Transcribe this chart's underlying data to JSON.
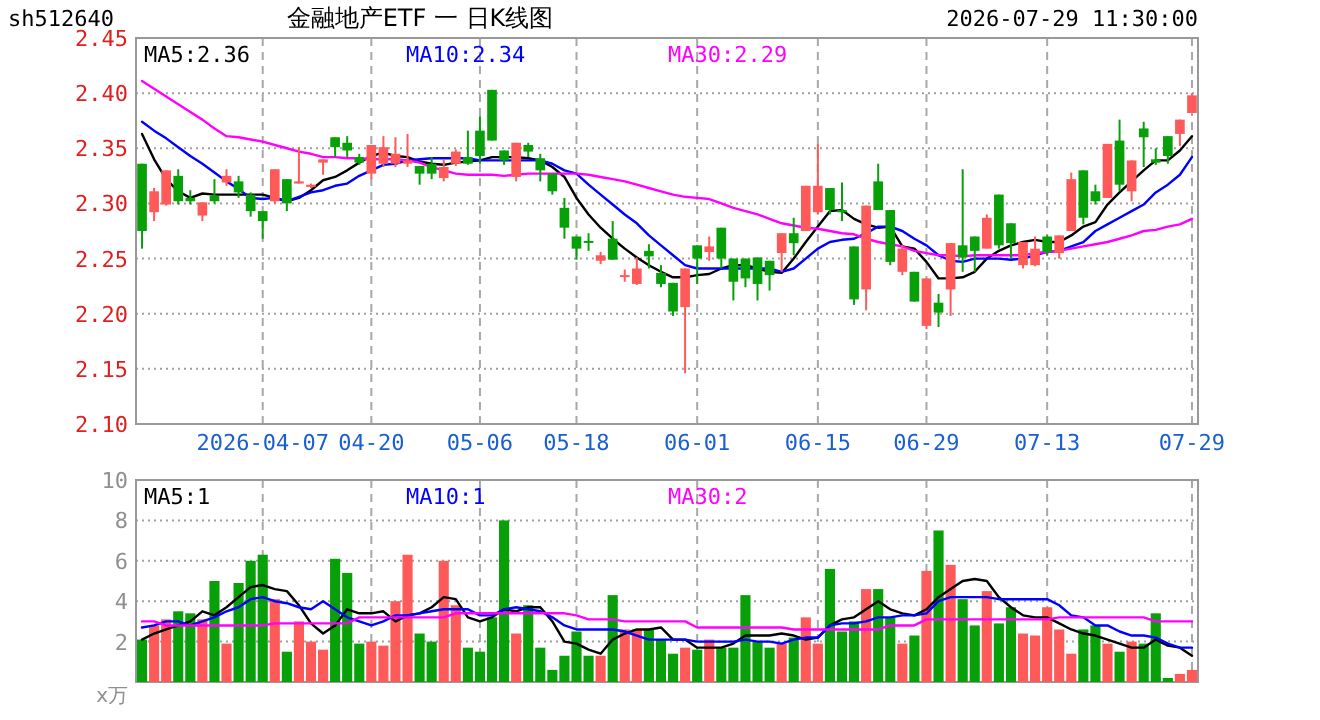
{
  "chart_data": [
    {
      "type": "candlestick",
      "title": "金融地产ETF 一 日K线图",
      "annotations": [
        "sh512640",
        "2026-07-29 11:30:00"
      ],
      "categories": [
        null,
        null,
        null,
        null,
        null,
        null,
        null,
        null,
        null,
        null,
        "2026-04-07",
        null,
        null,
        null,
        null,
        null,
        null,
        null,
        null,
        "04-20",
        null,
        null,
        null,
        null,
        null,
        null,
        null,
        null,
        "05-06",
        null,
        null,
        null,
        null,
        null,
        null,
        null,
        "05-18",
        null,
        null,
        null,
        null,
        null,
        null,
        null,
        null,
        null,
        "06-01",
        null,
        null,
        null,
        null,
        null,
        null,
        null,
        null,
        null,
        "06-15",
        null,
        null,
        null,
        null,
        null,
        null,
        null,
        null,
        "06-29",
        null,
        null,
        null,
        null,
        null,
        null,
        null,
        null,
        null,
        "07-13",
        null,
        null,
        null,
        null,
        null,
        null,
        null,
        null,
        null,
        null,
        null,
        "07-29"
      ],
      "ohlc": [
        [
          2.336,
          2.336,
          2.259,
          2.275
        ],
        [
          2.292,
          2.314,
          2.284,
          2.311
        ],
        [
          2.299,
          2.33,
          2.298,
          2.33
        ],
        [
          2.325,
          2.331,
          2.299,
          2.302
        ],
        [
          2.305,
          2.312,
          2.299,
          2.302
        ],
        [
          2.289,
          2.301,
          2.284,
          2.301
        ],
        [
          2.307,
          2.322,
          2.3,
          2.302
        ],
        [
          2.319,
          2.331,
          2.316,
          2.325
        ],
        [
          2.32,
          2.325,
          2.305,
          2.31
        ],
        [
          2.308,
          2.31,
          2.288,
          2.293
        ],
        [
          2.293,
          2.293,
          2.268,
          2.284
        ],
        [
          2.302,
          2.331,
          2.3,
          2.331
        ],
        [
          2.322,
          2.322,
          2.293,
          2.3
        ],
        [
          2.318,
          2.351,
          2.318,
          2.32
        ],
        [
          2.315,
          2.318,
          2.314,
          2.317
        ],
        [
          2.337,
          2.34,
          2.326,
          2.34
        ],
        [
          2.36,
          2.36,
          2.342,
          2.351
        ],
        [
          2.355,
          2.361,
          2.342,
          2.348
        ],
        [
          2.342,
          2.345,
          2.335,
          2.337
        ],
        [
          2.327,
          2.353,
          2.322,
          2.353
        ],
        [
          2.336,
          2.361,
          2.333,
          2.351
        ],
        [
          2.336,
          2.36,
          2.333,
          2.345
        ],
        [
          2.336,
          2.363,
          2.333,
          2.339
        ],
        [
          2.334,
          2.334,
          2.317,
          2.327
        ],
        [
          2.336,
          2.342,
          2.322,
          2.327
        ],
        [
          2.323,
          2.34,
          2.32,
          2.333
        ],
        [
          2.336,
          2.349,
          2.334,
          2.347
        ],
        [
          2.342,
          2.366,
          2.335,
          2.336
        ],
        [
          2.366,
          2.379,
          2.336,
          2.343
        ],
        [
          2.403,
          2.403,
          2.357,
          2.357
        ],
        [
          2.348,
          2.348,
          2.335,
          2.339
        ],
        [
          2.324,
          2.355,
          2.32,
          2.355
        ],
        [
          2.353,
          2.355,
          2.342,
          2.347
        ],
        [
          2.341,
          2.345,
          2.32,
          2.33
        ],
        [
          2.327,
          2.327,
          2.308,
          2.311
        ],
        [
          2.296,
          2.305,
          2.268,
          2.278
        ],
        [
          2.27,
          2.27,
          2.249,
          2.259
        ],
        [
          2.266,
          2.273,
          2.257,
          2.265
        ],
        [
          2.248,
          2.256,
          2.245,
          2.253
        ],
        [
          2.268,
          2.284,
          2.249,
          2.249
        ],
        [
          2.234,
          2.24,
          2.229,
          2.235
        ],
        [
          2.227,
          2.251,
          2.226,
          2.241
        ],
        [
          2.257,
          2.263,
          2.241,
          2.252
        ],
        [
          2.237,
          2.244,
          2.224,
          2.227
        ],
        [
          2.228,
          2.228,
          2.198,
          2.202
        ],
        [
          2.206,
          2.241,
          2.146,
          2.241
        ],
        [
          2.262,
          2.262,
          2.227,
          2.25
        ],
        [
          2.256,
          2.27,
          2.248,
          2.261
        ],
        [
          2.278,
          2.278,
          2.241,
          2.25
        ],
        [
          2.25,
          2.25,
          2.212,
          2.229
        ],
        [
          2.25,
          2.25,
          2.224,
          2.232
        ],
        [
          2.251,
          2.251,
          2.212,
          2.227
        ],
        [
          2.248,
          2.248,
          2.221,
          2.235
        ],
        [
          2.255,
          2.273,
          2.238,
          2.273
        ],
        [
          2.273,
          2.287,
          2.253,
          2.264
        ],
        [
          2.275,
          2.316,
          2.275,
          2.316
        ],
        [
          2.292,
          2.354,
          2.29,
          2.316
        ],
        [
          2.314,
          2.314,
          2.29,
          2.294
        ],
        [
          2.294,
          2.319,
          2.284,
          2.292
        ],
        [
          2.261,
          2.261,
          2.208,
          2.213
        ],
        [
          2.222,
          2.298,
          2.203,
          2.298
        ],
        [
          2.32,
          2.336,
          2.294,
          2.294
        ],
        [
          2.294,
          2.294,
          2.244,
          2.247
        ],
        [
          2.238,
          2.262,
          2.235,
          2.259
        ],
        [
          2.238,
          2.238,
          2.211,
          2.211
        ],
        [
          2.189,
          2.232,
          2.186,
          2.232
        ],
        [
          2.21,
          2.218,
          2.188,
          2.201
        ],
        [
          2.222,
          2.264,
          2.198,
          2.264
        ],
        [
          2.262,
          2.331,
          2.238,
          2.251
        ],
        [
          2.27,
          2.27,
          2.238,
          2.257
        ],
        [
          2.259,
          2.29,
          2.259,
          2.287
        ],
        [
          2.308,
          2.308,
          2.259,
          2.262
        ],
        [
          2.282,
          2.282,
          2.25,
          2.264
        ],
        [
          2.244,
          2.265,
          2.241,
          2.265
        ],
        [
          2.244,
          2.27,
          2.243,
          2.259
        ],
        [
          2.27,
          2.271,
          2.253,
          2.256
        ],
        [
          2.255,
          2.271,
          2.25,
          2.271
        ],
        [
          2.275,
          2.328,
          2.275,
          2.322
        ],
        [
          2.33,
          2.33,
          2.281,
          2.287
        ],
        [
          2.311,
          2.317,
          2.299,
          2.302
        ],
        [
          2.305,
          2.354,
          2.305,
          2.354
        ],
        [
          2.357,
          2.376,
          2.311,
          2.317
        ],
        [
          2.311,
          2.339,
          2.302,
          2.339
        ],
        [
          2.368,
          2.374,
          2.333,
          2.36
        ],
        [
          2.34,
          2.35,
          2.335,
          2.337
        ],
        [
          2.361,
          2.361,
          2.336,
          2.343
        ],
        [
          2.363,
          2.376,
          2.352,
          2.376
        ],
        [
          2.382,
          2.4,
          2.382,
          2.398
        ]
      ],
      "series": [
        {
          "type": "line",
          "name": "MA5:2.36",
          "color": "#000000",
          "values": [
            2.363,
            2.34,
            2.322,
            2.311,
            2.305,
            2.309,
            2.308,
            2.308,
            2.308,
            2.308,
            2.308,
            2.305,
            2.302,
            2.305,
            2.312,
            2.321,
            2.324,
            2.33,
            2.337,
            2.343,
            2.346,
            2.343,
            2.342,
            2.338,
            2.336,
            2.335,
            2.337,
            2.338,
            2.339,
            2.342,
            2.342,
            2.342,
            2.341,
            2.339,
            2.333,
            2.324,
            2.305,
            2.29,
            2.278,
            2.268,
            2.259,
            2.251,
            2.244,
            2.238,
            2.233,
            2.233,
            2.235,
            2.236,
            2.241,
            2.244,
            2.244,
            2.241,
            2.238,
            2.237,
            2.25,
            2.265,
            2.279,
            2.293,
            2.294,
            2.286,
            2.281,
            2.278,
            2.279,
            2.261,
            2.259,
            2.247,
            2.232,
            2.232,
            2.233,
            2.238,
            2.25,
            2.257,
            2.262,
            2.265,
            2.267,
            2.265,
            2.265,
            2.271,
            2.279,
            2.283,
            2.299,
            2.31,
            2.32,
            2.33,
            2.339,
            2.339,
            2.348,
            2.361
          ]
        },
        {
          "type": "line",
          "name": "MA10:2.34",
          "color": "#0000ff",
          "values": [
            2.374,
            2.366,
            2.359,
            2.351,
            2.343,
            2.336,
            2.328,
            2.32,
            2.313,
            2.305,
            2.304,
            2.305,
            2.302,
            2.306,
            2.31,
            2.312,
            2.316,
            2.318,
            2.325,
            2.33,
            2.335,
            2.336,
            2.339,
            2.34,
            2.341,
            2.341,
            2.341,
            2.341,
            2.339,
            2.339,
            2.339,
            2.339,
            2.339,
            2.339,
            2.336,
            2.33,
            2.327,
            2.317,
            2.308,
            2.299,
            2.29,
            2.282,
            2.271,
            2.262,
            2.253,
            2.244,
            2.241,
            2.241,
            2.241,
            2.241,
            2.241,
            2.241,
            2.241,
            2.238,
            2.241,
            2.25,
            2.259,
            2.265,
            2.267,
            2.268,
            2.273,
            2.279,
            2.279,
            2.275,
            2.268,
            2.262,
            2.253,
            2.248,
            2.247,
            2.25,
            2.25,
            2.25,
            2.249,
            2.25,
            2.253,
            2.256,
            2.257,
            2.261,
            2.265,
            2.275,
            2.281,
            2.287,
            2.293,
            2.299,
            2.31,
            2.317,
            2.326,
            2.342
          ]
        },
        {
          "type": "line",
          "name": "MA30:2.29",
          "color": "#ff00ff",
          "values": [
            2.411,
            2.404,
            2.397,
            2.39,
            2.383,
            2.376,
            2.368,
            2.361,
            2.36,
            2.358,
            2.356,
            2.353,
            2.35,
            2.347,
            2.345,
            2.342,
            2.342,
            2.341,
            2.341,
            2.34,
            2.34,
            2.34,
            2.339,
            2.337,
            2.333,
            2.33,
            2.327,
            2.326,
            2.326,
            2.326,
            2.325,
            2.326,
            2.327,
            2.327,
            2.327,
            2.327,
            2.327,
            2.326,
            2.324,
            2.322,
            2.32,
            2.317,
            2.314,
            2.311,
            2.308,
            2.306,
            2.305,
            2.304,
            2.3,
            2.296,
            2.293,
            2.29,
            2.286,
            2.282,
            2.28,
            2.278,
            2.277,
            2.275,
            2.273,
            2.272,
            2.268,
            2.265,
            2.263,
            2.261,
            2.257,
            2.255,
            2.253,
            2.253,
            2.252,
            2.253,
            2.253,
            2.253,
            2.253,
            2.253,
            2.255,
            2.256,
            2.257,
            2.259,
            2.261,
            2.263,
            2.265,
            2.268,
            2.271,
            2.275,
            2.276,
            2.279,
            2.281,
            2.286
          ]
        }
      ],
      "ylim": [
        2.1,
        2.45
      ],
      "yticks": [
        {
          "value": 2.1,
          "label": "2.10"
        },
        {
          "value": 2.15,
          "label": "2.15"
        },
        {
          "value": 2.2,
          "label": "2.20"
        },
        {
          "value": 2.25,
          "label": "2.25"
        },
        {
          "value": 2.3,
          "label": "2.30"
        },
        {
          "value": 2.35,
          "label": "2.35"
        },
        {
          "value": 2.4,
          "label": "2.40"
        },
        {
          "value": 2.45,
          "label": "2.45"
        }
      ],
      "grid": true,
      "legend": "top left"
    },
    {
      "type": "bar",
      "ylabel": "x万",
      "tick_labels": "y",
      "categories": [
        null,
        null,
        null,
        null,
        null,
        null,
        null,
        null,
        null,
        null,
        null,
        null,
        null,
        null,
        null,
        null,
        null,
        null,
        null,
        null,
        null,
        null,
        null,
        null,
        null,
        null,
        null,
        null,
        null,
        null,
        null,
        null,
        null,
        null,
        null,
        null,
        null,
        null,
        null,
        null,
        null,
        null,
        null,
        null,
        null,
        null,
        null,
        null,
        null,
        null,
        null,
        null,
        null,
        null,
        null,
        null,
        null,
        null,
        null,
        null,
        null,
        null,
        null,
        null,
        null,
        null,
        null,
        null,
        null,
        null,
        null,
        null,
        null,
        null,
        null,
        null,
        null,
        null,
        null,
        null,
        null,
        null,
        null,
        null,
        null,
        null,
        null,
        null
      ],
      "series": [
        {
          "type": "bar",
          "values": [
            2.1,
            2.8,
            3.1,
            3.5,
            3.4,
            3.1,
            5.0,
            1.9,
            4.9,
            6.0,
            6.3,
            4.1,
            1.5,
            3.0,
            2.0,
            1.6,
            6.1,
            5.4,
            1.9,
            2.0,
            1.8,
            4.0,
            6.3,
            2.4,
            2.0,
            6.0,
            3.8,
            1.7,
            1.5,
            3.2,
            8.0,
            2.4,
            3.8,
            1.7,
            0.6,
            1.3,
            2.5,
            1.3,
            1.3,
            4.3,
            2.6,
            2.6,
            2.6,
            2.1,
            1.4,
            1.7,
            1.6,
            2.1,
            1.7,
            1.7,
            4.3,
            2.0,
            1.7,
            1.9,
            2.2,
            3.2,
            1.9,
            5.6,
            2.5,
            3.0,
            4.6,
            4.6,
            3.2,
            1.9,
            2.3,
            5.5,
            7.5,
            5.8,
            4.1,
            2.8,
            4.5,
            2.9,
            3.7,
            2.4,
            2.3,
            3.7,
            2.6,
            1.4,
            2.6,
            2.8,
            1.9,
            1.5,
            2.0,
            1.9,
            3.4,
            0.2,
            0.4,
            0.6
          ],
          "colors": [
            "#08a008",
            "#ff5a5a",
            "#ff5a5a",
            "#08a008",
            "#08a008",
            "#ff5a5a",
            "#08a008",
            "#ff5a5a",
            "#08a008",
            "#08a008",
            "#08a008",
            "#ff5a5a",
            "#08a008",
            "#ff5a5a",
            "#ff5a5a",
            "#ff5a5a",
            "#08a008",
            "#08a008",
            "#08a008",
            "#ff5a5a",
            "#ff5a5a",
            "#ff5a5a",
            "#ff5a5a",
            "#08a008",
            "#08a008",
            "#ff5a5a",
            "#ff5a5a",
            "#08a008",
            "#08a008",
            "#08a008",
            "#08a008",
            "#ff5a5a",
            "#08a008",
            "#08a008",
            "#08a008",
            "#08a008",
            "#08a008",
            "#08a008",
            "#ff5a5a",
            "#08a008",
            "#ff5a5a",
            "#ff5a5a",
            "#08a008",
            "#08a008",
            "#08a008",
            "#ff5a5a",
            "#08a008",
            "#ff5a5a",
            "#08a008",
            "#08a008",
            "#08a008",
            "#08a008",
            "#08a008",
            "#ff5a5a",
            "#08a008",
            "#ff5a5a",
            "#ff5a5a",
            "#08a008",
            "#08a008",
            "#08a008",
            "#ff5a5a",
            "#08a008",
            "#08a008",
            "#ff5a5a",
            "#08a008",
            "#ff5a5a",
            "#08a008",
            "#ff5a5a",
            "#08a008",
            "#08a008",
            "#ff5a5a",
            "#08a008",
            "#08a008",
            "#ff5a5a",
            "#ff5a5a",
            "#ff5a5a",
            "#ff5a5a",
            "#ff5a5a",
            "#08a008",
            "#08a008",
            "#ff5a5a",
            "#08a008",
            "#ff5a5a",
            "#08a008",
            "#08a008",
            "#08a008",
            "#ff5a5a",
            "#ff5a5a"
          ]
        },
        {
          "type": "line",
          "name": "MA5:1",
          "color": "#000000",
          "values": [
            2.1,
            2.4,
            2.6,
            2.8,
            3.0,
            3.5,
            3.3,
            3.7,
            4.2,
            4.7,
            4.8,
            4.6,
            4.5,
            3.8,
            2.9,
            2.4,
            2.8,
            3.6,
            3.4,
            3.4,
            3.5,
            3.0,
            3.3,
            3.4,
            3.7,
            4.2,
            4.1,
            3.2,
            3.0,
            3.2,
            3.6,
            3.5,
            3.7,
            3.7,
            3.0,
            2.0,
            1.9,
            1.6,
            1.4,
            2.1,
            2.4,
            2.6,
            2.6,
            2.7,
            2.1,
            2.1,
            1.7,
            1.7,
            1.7,
            1.9,
            2.3,
            2.3,
            2.3,
            2.4,
            2.3,
            2.1,
            2.2,
            2.8,
            3.1,
            3.2,
            3.6,
            4.0,
            3.6,
            3.4,
            3.3,
            3.6,
            4.2,
            4.6,
            5.0,
            5.1,
            5.0,
            4.2,
            3.7,
            3.3,
            3.2,
            3.2,
            2.9,
            2.6,
            2.4,
            2.3,
            2.1,
            1.9,
            1.7,
            1.7,
            2.1,
            1.8,
            1.7,
            1.3
          ]
        },
        {
          "type": "line",
          "name": "MA10:1",
          "color": "#0000ff",
          "values": [
            2.7,
            2.8,
            3.0,
            3.0,
            2.8,
            3.0,
            3.2,
            3.5,
            3.7,
            4.1,
            4.2,
            4.0,
            3.9,
            3.7,
            3.6,
            4.0,
            3.6,
            3.2,
            3.0,
            2.8,
            3.0,
            3.3,
            3.3,
            3.4,
            3.5,
            3.6,
            3.6,
            3.6,
            3.3,
            3.3,
            3.6,
            3.7,
            3.6,
            3.5,
            3.2,
            2.8,
            2.6,
            2.6,
            2.6,
            2.6,
            2.5,
            2.3,
            2.1,
            2.1,
            2.1,
            2.1,
            2.0,
            2.0,
            2.0,
            2.0,
            2.1,
            2.0,
            2.0,
            1.9,
            2.1,
            2.2,
            2.2,
            2.8,
            2.9,
            2.9,
            3.0,
            3.2,
            3.2,
            3.3,
            3.3,
            3.4,
            4.0,
            4.2,
            4.2,
            4.2,
            4.2,
            4.1,
            4.1,
            4.1,
            4.1,
            4.1,
            3.8,
            3.3,
            3.2,
            2.8,
            2.8,
            2.5,
            2.3,
            2.3,
            2.2,
            1.9,
            1.7,
            1.7
          ]
        },
        {
          "type": "line",
          "name": "MA30:2",
          "color": "#ff00ff",
          "values": [
            3.0,
            3.0,
            2.8,
            2.8,
            2.8,
            2.8,
            2.8,
            2.8,
            2.8,
            2.8,
            2.8,
            2.9,
            2.9,
            2.9,
            2.9,
            2.9,
            2.9,
            2.9,
            3.2,
            3.2,
            3.2,
            3.2,
            3.2,
            3.2,
            3.2,
            3.2,
            3.4,
            3.4,
            3.4,
            3.4,
            3.4,
            3.4,
            3.4,
            3.4,
            3.4,
            3.4,
            3.3,
            3.1,
            3.1,
            3.1,
            3.0,
            3.0,
            3.0,
            3.0,
            3.0,
            3.0,
            2.7,
            2.7,
            2.7,
            2.7,
            2.7,
            2.7,
            2.7,
            2.7,
            2.6,
            2.6,
            2.6,
            2.6,
            2.6,
            2.6,
            2.6,
            2.6,
            2.8,
            2.8,
            2.8,
            3.1,
            3.1,
            3.1,
            3.1,
            3.1,
            3.1,
            3.1,
            3.1,
            3.1,
            3.1,
            3.1,
            3.2,
            3.2,
            3.2,
            3.2,
            3.2,
            3.2,
            3.2,
            3.2,
            3.0,
            3.0,
            3.0,
            3.0
          ]
        }
      ],
      "ylim": [
        0,
        10
      ],
      "yticks": [
        2,
        4,
        6,
        8,
        10
      ],
      "grid": true,
      "legend": "top left"
    }
  ]
}
